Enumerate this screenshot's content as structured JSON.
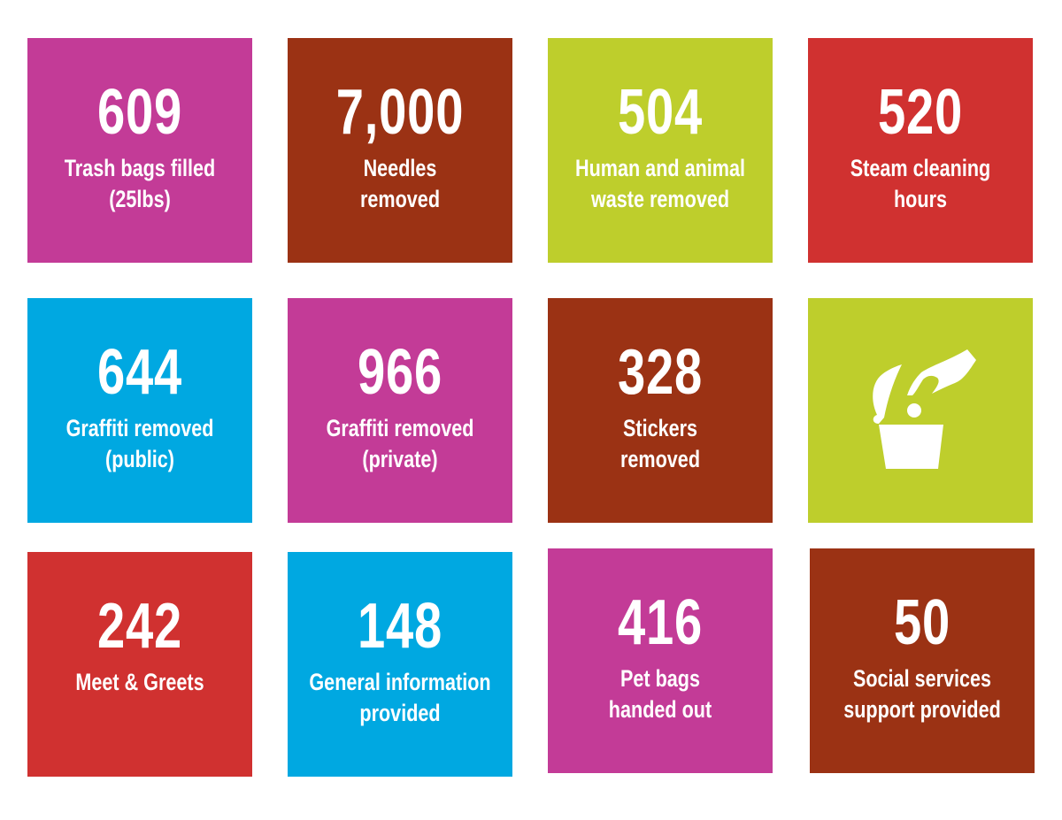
{
  "colors": {
    "magenta": "#C33B97",
    "brown": "#9B3214",
    "lime": "#BECE2C",
    "red": "#D03130",
    "blue": "#00A8E1"
  },
  "tiles": [
    {
      "number": "609",
      "label": "Trash bags filled\n(25lbs)",
      "color": "#C33B97"
    },
    {
      "number": "7,000",
      "label": "Needles\nremoved",
      "color": "#9B3214"
    },
    {
      "number": "504",
      "label": "Human and animal\nwaste removed",
      "color": "#BECE2C"
    },
    {
      "number": "520",
      "label": "Steam cleaning\nhours",
      "color": "#D03130"
    },
    {
      "number": "644",
      "label": "Graffiti removed\n(public)",
      "color": "#00A8E1"
    },
    {
      "number": "966",
      "label": "Graffiti removed\n(private)",
      "color": "#C33B97"
    },
    {
      "number": "328",
      "label": "Stickers\nremoved",
      "color": "#9B3214"
    },
    {
      "icon": "hand-dropping-litter-in-bin-icon",
      "color": "#BECE2C"
    },
    {
      "number": "242",
      "label": "Meet & Greets",
      "color": "#D03130"
    },
    {
      "number": "148",
      "label": "General information\nprovided",
      "color": "#00A8E1"
    },
    {
      "number": "416",
      "label": "Pet bags\nhanded out",
      "color": "#C33B97"
    },
    {
      "number": "50",
      "label": "Social services\nsupport provided",
      "color": "#9B3214"
    }
  ]
}
